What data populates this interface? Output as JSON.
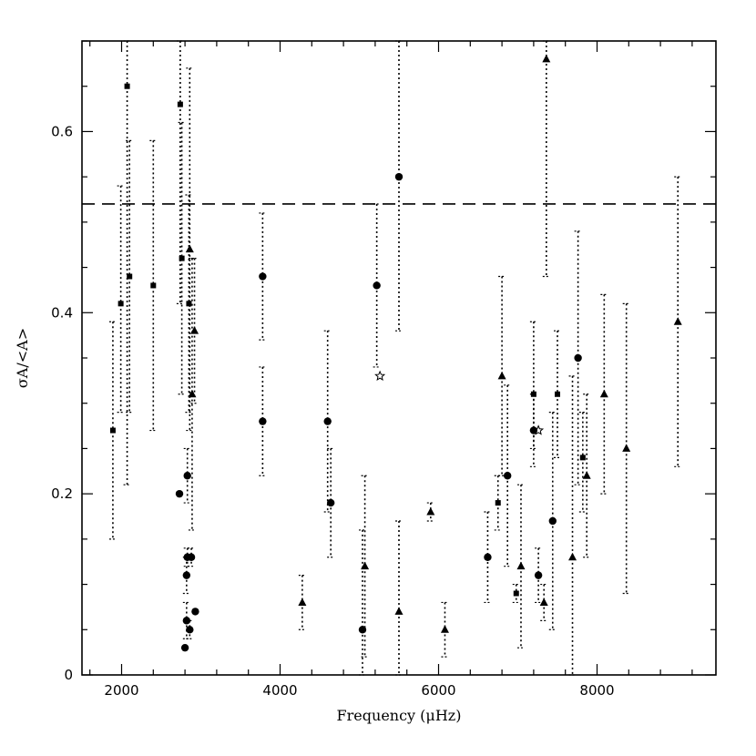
{
  "chart_data": {
    "type": "scatter",
    "xlabel": "Frequency (μHz)",
    "ylabel": "σA/<A>",
    "xlim": [
      1500,
      9500
    ],
    "ylim": [
      0,
      0.7
    ],
    "x_ticks": [
      2000,
      4000,
      6000,
      8000
    ],
    "x_tick_labels": [
      "2000",
      "4000",
      "6000",
      "8000"
    ],
    "y_ticks": [
      0,
      0.2,
      0.4,
      0.6
    ],
    "y_tick_labels": [
      "0",
      "0.2",
      "0.4",
      "0.6"
    ],
    "reference_line": {
      "y": 0.52,
      "style": "dashed"
    },
    "series": [
      {
        "marker": "square",
        "points": [
          {
            "x": 1890,
            "y": 0.27,
            "lo": 0.15,
            "hi": 0.39
          },
          {
            "x": 1990,
            "y": 0.41,
            "lo": 0.29,
            "hi": 0.54
          },
          {
            "x": 2070,
            "y": 0.65,
            "lo": 0.21,
            "hi": 0.7
          },
          {
            "x": 2100,
            "y": 0.44,
            "lo": 0.29,
            "hi": 0.59
          },
          {
            "x": 2400,
            "y": 0.43,
            "lo": 0.27,
            "hi": 0.59
          },
          {
            "x": 2740,
            "y": 0.63,
            "lo": 0.41,
            "hi": 0.7
          },
          {
            "x": 2760,
            "y": 0.46,
            "lo": 0.31,
            "hi": 0.61
          },
          {
            "x": 2850,
            "y": 0.41,
            "lo": 0.29,
            "hi": 0.53
          },
          {
            "x": 6750,
            "y": 0.19,
            "lo": 0.16,
            "hi": 0.22
          },
          {
            "x": 6980,
            "y": 0.09,
            "lo": 0.08,
            "hi": 0.1
          },
          {
            "x": 7200,
            "y": 0.31,
            "lo": 0.25,
            "hi": 0.39
          },
          {
            "x": 7500,
            "y": 0.31,
            "lo": 0.24,
            "hi": 0.38
          },
          {
            "x": 7820,
            "y": 0.24,
            "lo": 0.18,
            "hi": 0.29
          }
        ]
      },
      {
        "marker": "circle",
        "points": [
          {
            "x": 2730,
            "y": 0.2,
            "lo": 0.2,
            "hi": 0.2
          },
          {
            "x": 2800,
            "y": 0.03,
            "lo": 0.03,
            "hi": 0.03
          },
          {
            "x": 2820,
            "y": 0.06,
            "lo": 0.04,
            "hi": 0.08
          },
          {
            "x": 2820,
            "y": 0.11,
            "lo": 0.09,
            "hi": 0.13
          },
          {
            "x": 2830,
            "y": 0.13,
            "lo": 0.12,
            "hi": 0.14
          },
          {
            "x": 2830,
            "y": 0.22,
            "lo": 0.19,
            "hi": 0.25
          },
          {
            "x": 2860,
            "y": 0.05,
            "lo": 0.04,
            "hi": 0.06
          },
          {
            "x": 2880,
            "y": 0.13,
            "lo": 0.12,
            "hi": 0.14
          },
          {
            "x": 2930,
            "y": 0.07,
            "lo": 0.07,
            "hi": 0.07
          },
          {
            "x": 3780,
            "y": 0.44,
            "lo": 0.37,
            "hi": 0.51
          },
          {
            "x": 3780,
            "y": 0.28,
            "lo": 0.22,
            "hi": 0.34
          },
          {
            "x": 4600,
            "y": 0.28,
            "lo": 0.18,
            "hi": 0.38
          },
          {
            "x": 4640,
            "y": 0.19,
            "lo": 0.13,
            "hi": 0.25
          },
          {
            "x": 5040,
            "y": 0.05,
            "lo": 0.0,
            "hi": 0.16
          },
          {
            "x": 5220,
            "y": 0.43,
            "lo": 0.34,
            "hi": 0.52
          },
          {
            "x": 5500,
            "y": 0.55,
            "lo": 0.38,
            "hi": 0.7
          },
          {
            "x": 6620,
            "y": 0.13,
            "lo": 0.08,
            "hi": 0.18
          },
          {
            "x": 6870,
            "y": 0.22,
            "lo": 0.12,
            "hi": 0.32
          },
          {
            "x": 7200,
            "y": 0.27,
            "lo": 0.23,
            "hi": 0.31
          },
          {
            "x": 7260,
            "y": 0.11,
            "lo": 0.08,
            "hi": 0.14
          },
          {
            "x": 7440,
            "y": 0.17,
            "lo": 0.05,
            "hi": 0.29
          },
          {
            "x": 7760,
            "y": 0.35,
            "lo": 0.21,
            "hi": 0.49
          }
        ]
      },
      {
        "marker": "triangle",
        "points": [
          {
            "x": 2860,
            "y": 0.47,
            "lo": 0.27,
            "hi": 0.67
          },
          {
            "x": 2890,
            "y": 0.31,
            "lo": 0.16,
            "hi": 0.46
          },
          {
            "x": 2920,
            "y": 0.38,
            "lo": 0.3,
            "hi": 0.46
          },
          {
            "x": 4280,
            "y": 0.08,
            "lo": 0.05,
            "hi": 0.11
          },
          {
            "x": 5070,
            "y": 0.12,
            "lo": 0.02,
            "hi": 0.22
          },
          {
            "x": 5500,
            "y": 0.07,
            "lo": 0.0,
            "hi": 0.17
          },
          {
            "x": 5900,
            "y": 0.18,
            "lo": 0.17,
            "hi": 0.19
          },
          {
            "x": 6080,
            "y": 0.05,
            "lo": 0.02,
            "hi": 0.08
          },
          {
            "x": 6800,
            "y": 0.33,
            "lo": 0.22,
            "hi": 0.44
          },
          {
            "x": 7040,
            "y": 0.12,
            "lo": 0.03,
            "hi": 0.21
          },
          {
            "x": 7330,
            "y": 0.08,
            "lo": 0.06,
            "hi": 0.1
          },
          {
            "x": 7360,
            "y": 0.68,
            "lo": 0.44,
            "hi": 0.7
          },
          {
            "x": 7690,
            "y": 0.13,
            "lo": 0.0,
            "hi": 0.33
          },
          {
            "x": 7870,
            "y": 0.22,
            "lo": 0.13,
            "hi": 0.31
          },
          {
            "x": 8090,
            "y": 0.31,
            "lo": 0.2,
            "hi": 0.42
          },
          {
            "x": 8370,
            "y": 0.25,
            "lo": 0.09,
            "hi": 0.41
          },
          {
            "x": 9020,
            "y": 0.39,
            "lo": 0.23,
            "hi": 0.55
          }
        ]
      },
      {
        "marker": "star",
        "points": [
          {
            "x": 5260,
            "y": 0.33,
            "lo": 0.33,
            "hi": 0.33
          },
          {
            "x": 7260,
            "y": 0.27,
            "lo": 0.27,
            "hi": 0.27
          }
        ]
      }
    ]
  }
}
